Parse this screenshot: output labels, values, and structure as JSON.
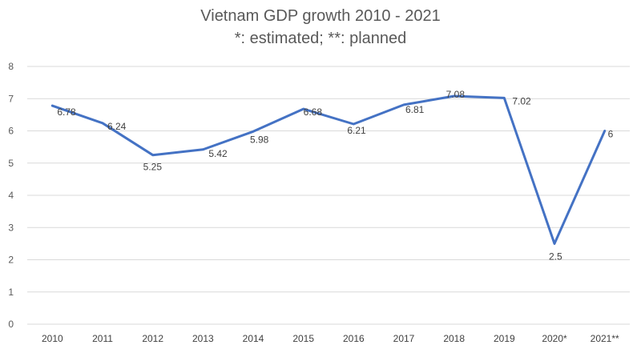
{
  "chart_data": {
    "type": "line",
    "title": "Vietnam GDP growth 2010 - 2021",
    "subtitle": "*: estimated; **: planned",
    "categories": [
      "2010",
      "2011",
      "2012",
      "2013",
      "2014",
      "2015",
      "2016",
      "2017",
      "2018",
      "2019",
      "2020*",
      "2021**"
    ],
    "series": [
      {
        "values": [
          6.78,
          6.24,
          5.25,
          5.42,
          5.98,
          6.68,
          6.21,
          6.81,
          7.08,
          7.02,
          2.5,
          6
        ],
        "labels": [
          "6.78",
          "6.24",
          "5.25",
          "5.42",
          "5.98",
          "6.68",
          "6.21",
          "6.81",
          "7.08",
          "7.02",
          "2.5",
          "6"
        ],
        "color": "#4472c4"
      }
    ],
    "yticks": [
      "0",
      "1",
      "2",
      "3",
      "4",
      "5",
      "6",
      "7",
      "8"
    ],
    "ylim": [
      0,
      8
    ],
    "grid": true,
    "legend": "none",
    "colors": {
      "line": "#4472c4",
      "grid": "#d9d9d9",
      "text": "#595959"
    }
  }
}
